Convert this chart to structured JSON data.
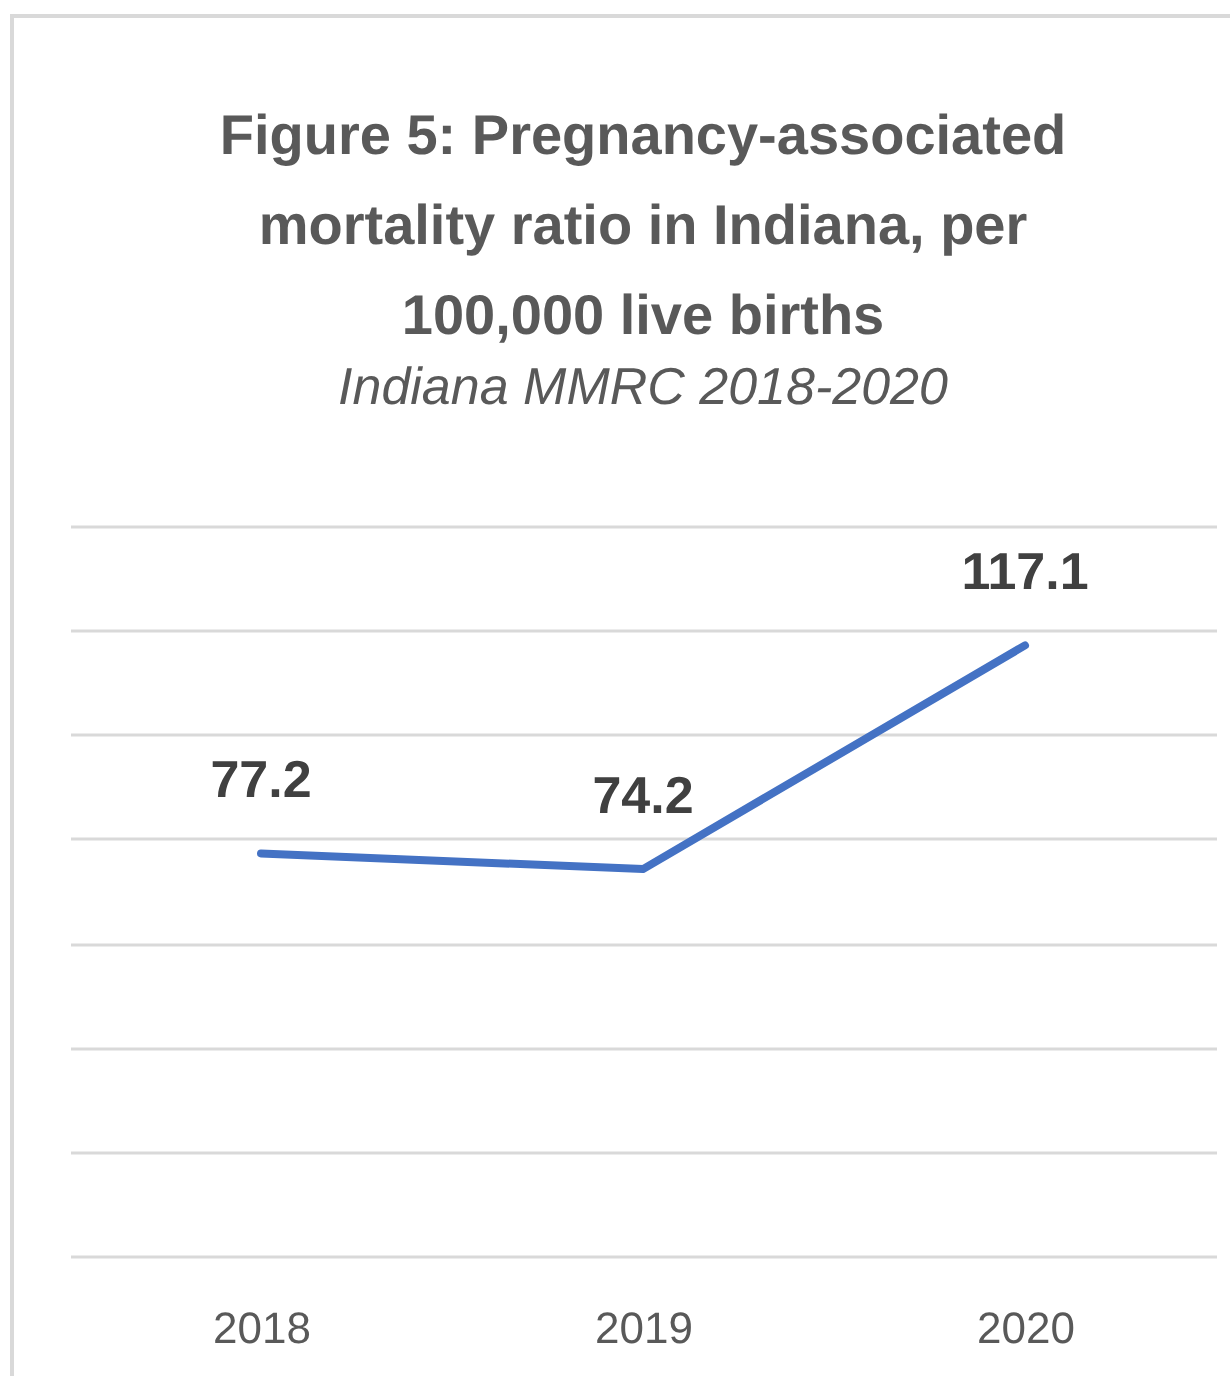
{
  "chart_data": {
    "type": "line",
    "title": "Figure 5: Pregnancy-associated mortality ratio in Indiana, per 100,000 live births",
    "subtitle": "Indiana MMRC 2018-2020",
    "categories": [
      "2018",
      "2019",
      "2020"
    ],
    "series": [
      {
        "color": "#4472c4",
        "values": [
          77.2,
          74.2,
          117.1
        ]
      }
    ],
    "ylim": [
      0,
      140
    ],
    "yticks": [
      {
        "value": 0,
        "label": null
      },
      {
        "value": 20,
        "label": null
      },
      {
        "value": 40,
        "label": null
      },
      {
        "value": 60,
        "label": null
      },
      {
        "value": 80,
        "label": null
      },
      {
        "value": 100,
        "label": null
      },
      {
        "value": 120,
        "label": null
      },
      {
        "value": 140,
        "label": null
      }
    ],
    "grid": "y",
    "tick_labels": "x",
    "data_labels": true,
    "line_style": "solid"
  }
}
